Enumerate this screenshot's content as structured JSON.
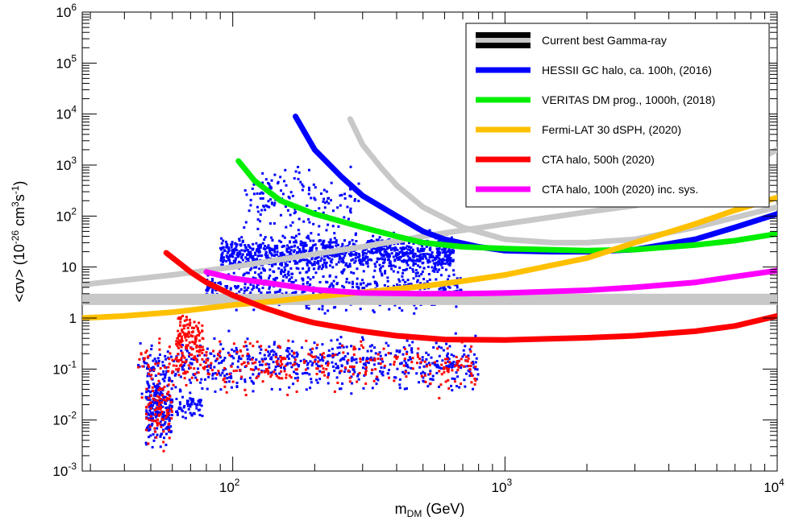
{
  "chart_data": {
    "type": "line",
    "xscale": "log",
    "yscale": "log",
    "xlim": [
      28,
      10000
    ],
    "ylim": [
      0.001,
      1000000
    ],
    "xlabel": {
      "main": "m",
      "sub": "DM",
      "unit": " (GeV)"
    },
    "ylabel": {
      "pre": "<σv> (10",
      "sup1": "-26",
      "mid": " cm",
      "sup2": "3",
      "mid2": "s",
      "sup3": "-1",
      "post": ")"
    },
    "x_ticks": [
      {
        "value": 100,
        "base": "10",
        "exp": "2"
      },
      {
        "value": 1000,
        "base": "10",
        "exp": "3"
      },
      {
        "value": 10000,
        "base": "10",
        "exp": "4"
      }
    ],
    "y_ticks": [
      {
        "value": 0.001,
        "base": "10",
        "exp": "-3"
      },
      {
        "value": 0.01,
        "base": "10",
        "exp": "-2"
      },
      {
        "value": 0.1,
        "base": "10",
        "exp": "-1"
      },
      {
        "value": 1,
        "base": "1",
        "exp": ""
      },
      {
        "value": 10,
        "base": "10",
        "exp": ""
      },
      {
        "value": 100,
        "base": "10",
        "exp": "2"
      },
      {
        "value": 1000,
        "base": "10",
        "exp": "3"
      },
      {
        "value": 10000,
        "base": "10",
        "exp": "4"
      },
      {
        "value": 100000,
        "base": "10",
        "exp": "5"
      },
      {
        "value": 1000000,
        "base": "10",
        "exp": "6"
      }
    ],
    "band": {
      "name": "Current best Gamma-ray",
      "color": "#c8c8c8",
      "y": [
        1.8,
        3.0
      ]
    },
    "series": [
      {
        "name": "HESSII GC halo, ca. 100h, (2016)",
        "color": "#0000ff",
        "x": [
          170,
          200,
          250,
          300,
          400,
          500,
          600,
          800,
          1000,
          1500,
          2000,
          3000,
          5000,
          7000,
          10000
        ],
        "y": [
          9000,
          2000,
          600,
          250,
          100,
          50,
          35,
          25,
          21,
          20,
          20,
          22,
          35,
          60,
          110
        ]
      },
      {
        "name": "VERITAS DM prog., 1000h, (2018)",
        "color": "#00ee00",
        "x": [
          105,
          120,
          150,
          200,
          300,
          400,
          500,
          700,
          1000,
          2000,
          3000,
          5000,
          7000,
          10000
        ],
        "y": [
          1200,
          500,
          200,
          110,
          60,
          40,
          30,
          25,
          23,
          21,
          22,
          27,
          33,
          45
        ]
      },
      {
        "name": "Fermi-LAT 30 dSPH, (2020)",
        "color": "#ffc000",
        "x": [
          28,
          40,
          60,
          100,
          150,
          200,
          300,
          500,
          700,
          1000,
          2000,
          3000,
          5000,
          7000,
          10000
        ],
        "y": [
          1.0,
          1.1,
          1.3,
          1.8,
          2.2,
          2.6,
          3.2,
          4.2,
          5.3,
          7,
          15,
          30,
          70,
          130,
          230
        ]
      },
      {
        "name": "CTA halo, 500h (2020)",
        "color": "#ff0000",
        "x": [
          57,
          70,
          80,
          100,
          130,
          170,
          200,
          300,
          400,
          600,
          1000,
          2000,
          3000,
          5000,
          7000,
          10000
        ],
        "y": [
          19,
          8,
          5,
          2.8,
          1.6,
          1.0,
          0.8,
          0.55,
          0.45,
          0.38,
          0.37,
          0.41,
          0.45,
          0.55,
          0.7,
          1.1
        ]
      },
      {
        "name": "CTA halo, 100h (2020) inc. sys.",
        "color": "#ff00ff",
        "x": [
          80,
          100,
          150,
          200,
          300,
          500,
          700,
          1000,
          2000,
          3000,
          5000,
          7000,
          10000
        ],
        "y": [
          8,
          6,
          4.5,
          3.6,
          3.1,
          3.0,
          3.0,
          3.1,
          3.5,
          4.0,
          5.0,
          6.5,
          8.5
        ]
      }
    ],
    "unlabeled_series": [
      {
        "color": "#c8c8c8",
        "x": [
          28,
          60,
          100,
          200,
          300,
          500,
          1000,
          2000,
          3000,
          5000,
          10000
        ],
        "y": [
          4.5,
          7,
          10,
          18,
          25,
          40,
          70,
          120,
          160,
          300,
          2000
        ]
      },
      {
        "color": "#c8c8c8",
        "x": [
          270,
          300,
          350,
          400,
          500,
          700,
          1000,
          1500,
          2000,
          3000,
          5000,
          10000
        ],
        "y": [
          8000,
          2500,
          900,
          400,
          150,
          60,
          35,
          30,
          30,
          35,
          60,
          150
        ]
      }
    ],
    "scatter_colors": [
      "#0000ff",
      "#ff0000"
    ],
    "legend_position": "top-right",
    "grid": false
  }
}
